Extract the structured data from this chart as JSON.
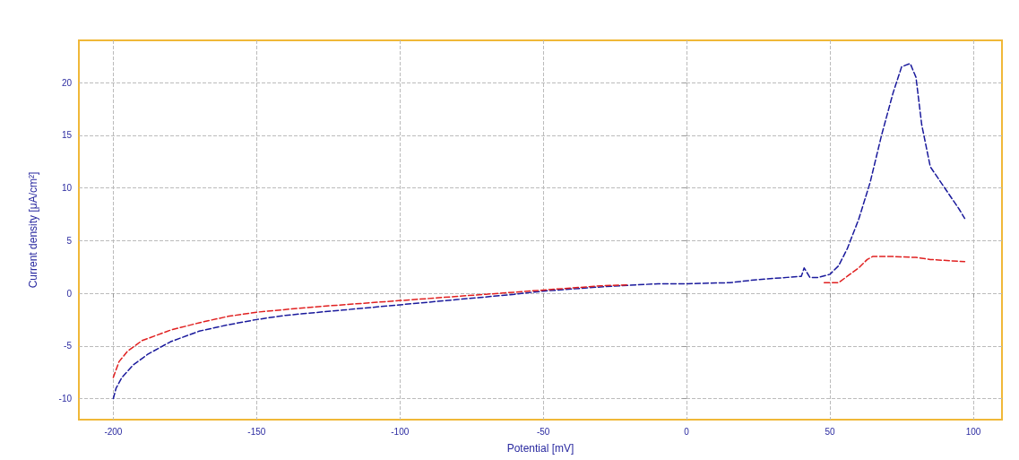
{
  "chart_data": {
    "type": "line",
    "xlabel": "Potential [mV]",
    "ylabel": "Current density [μA/cm²]",
    "xlim": [
      -212,
      110
    ],
    "xticks": [
      -200,
      -150,
      -100,
      -50,
      0,
      50,
      100
    ],
    "ylim": [
      -12,
      24
    ],
    "yticks": [
      -10,
      -5,
      0,
      5,
      10,
      15,
      20
    ],
    "grid": true,
    "marker": "none",
    "line_style": "dashed",
    "series": [
      {
        "color": "#1a1a9c",
        "x": [
          -200,
          -199,
          -197,
          -193,
          -188,
          -180,
          -170,
          -160,
          -150,
          -140,
          -120,
          -100,
          -80,
          -60,
          -50,
          -30,
          -10,
          0,
          15,
          25,
          35,
          40,
          41,
          43,
          46,
          50,
          53,
          56,
          60,
          64,
          68,
          72,
          75,
          78,
          80,
          82,
          85,
          90,
          95,
          97
        ],
        "values": [
          -10,
          -9,
          -8,
          -6.8,
          -5.8,
          -4.6,
          -3.6,
          -3,
          -2.5,
          -2.1,
          -1.6,
          -1.1,
          -0.6,
          -0.1,
          0.2,
          0.6,
          0.9,
          0.9,
          1,
          1.3,
          1.5,
          1.6,
          2.4,
          1.5,
          1.5,
          1.8,
          2.6,
          4.2,
          7,
          10.5,
          15,
          19,
          21.5,
          21.8,
          20.5,
          16,
          12,
          10,
          8,
          7.1
        ]
      },
      {
        "color": "#e02020",
        "x": [
          -200,
          -198,
          -195,
          -190,
          -180,
          -170,
          -160,
          -150,
          -130,
          -110,
          -90,
          -70,
          -50,
          -30,
          -20,
          35,
          48,
          50,
          53,
          56,
          60,
          63,
          65,
          70,
          80,
          85,
          97
        ],
        "values": [
          -8,
          -6.5,
          -5.5,
          -4.5,
          -3.5,
          -2.8,
          -2.2,
          -1.8,
          -1.3,
          -0.9,
          -0.5,
          -0.1,
          0.3,
          0.7,
          0.8,
          null,
          1,
          1,
          1,
          1.6,
          2.4,
          3.2,
          3.5,
          3.5,
          3.4,
          3.2,
          3
        ]
      }
    ]
  }
}
